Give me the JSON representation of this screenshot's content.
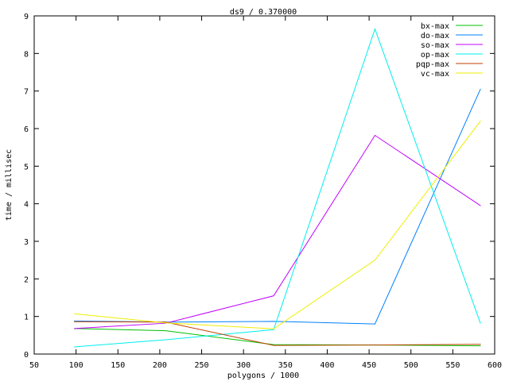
{
  "chart_data": {
    "type": "line",
    "title": "ds9 / 0.370000",
    "xlabel": "polygons / 1000",
    "ylabel": "time / millisec",
    "xlim": [
      50,
      600
    ],
    "ylim": [
      0,
      9
    ],
    "xticks": [
      50,
      100,
      150,
      200,
      250,
      300,
      350,
      400,
      450,
      500,
      550,
      600
    ],
    "yticks": [
      0,
      1,
      2,
      3,
      4,
      5,
      6,
      7,
      8,
      9
    ],
    "grid": false,
    "legend_position": "top-right",
    "x": [
      98,
      207,
      336,
      457,
      583
    ],
    "series": [
      {
        "name": "bx-max",
        "color": "#00c000",
        "values": [
          0.68,
          0.62,
          0.25,
          0.24,
          0.22
        ]
      },
      {
        "name": "do-max",
        "color": "#0080ff",
        "values": [
          0.88,
          0.85,
          0.87,
          0.8,
          7.05
        ]
      },
      {
        "name": "so-max",
        "color": "#c000ff",
        "values": [
          0.68,
          0.82,
          1.55,
          5.82,
          3.95
        ]
      },
      {
        "name": "op-max",
        "color": "#00eeee",
        "values": [
          0.19,
          0.38,
          0.65,
          8.65,
          0.82
        ]
      },
      {
        "name": "pqp-max",
        "color": "#c04000",
        "values": [
          0.86,
          0.85,
          0.23,
          0.24,
          0.26
        ]
      },
      {
        "name": "vc-max",
        "color": "#eeee00",
        "values": [
          1.07,
          0.83,
          0.67,
          2.5,
          6.2
        ]
      }
    ]
  }
}
